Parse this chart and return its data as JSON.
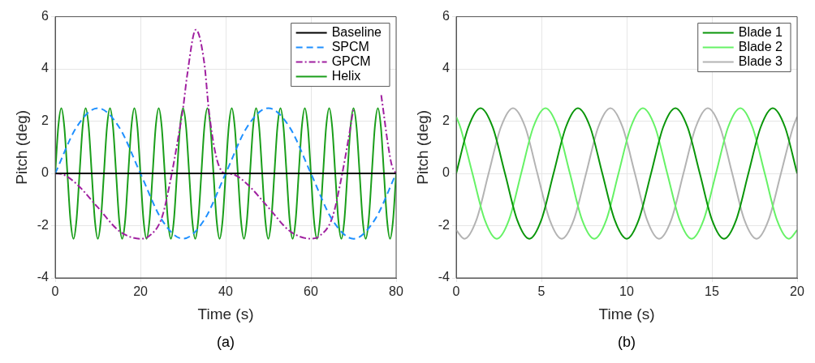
{
  "chart_data": [
    {
      "type": "line",
      "xlabel": "Time (s)",
      "ylabel": "Pitch (deg)",
      "annotations": [
        "(a)"
      ],
      "xlim": [
        0,
        80
      ],
      "ylim": [
        -4,
        6
      ],
      "xticks": [
        0,
        20,
        40,
        60,
        80
      ],
      "yticks": [
        -4,
        -2,
        0,
        2,
        4,
        6
      ],
      "grid": true,
      "legend": "top right",
      "series": [
        {
          "name": "Baseline",
          "color": "#000000",
          "line_style": "solid",
          "x": [
            0,
            80
          ],
          "values": [
            0,
            0
          ]
        },
        {
          "name": "SPCM",
          "color": "#1e90ff",
          "line_style": "dashed",
          "x": [
            0,
            5,
            10,
            15,
            20,
            25,
            30,
            35,
            40,
            45,
            50,
            55,
            60,
            65,
            70,
            75,
            80
          ],
          "values": [
            0,
            1.77,
            2.5,
            1.77,
            0,
            -1.77,
            -2.5,
            -1.77,
            0,
            1.77,
            2.5,
            1.77,
            0,
            -1.77,
            -2.5,
            -1.77,
            0
          ]
        },
        {
          "name": "GPCM",
          "color": "#a020a0",
          "line_style": "dashdot",
          "x": [
            0,
            2,
            5,
            10,
            15,
            20,
            22,
            25,
            27,
            29,
            30,
            31,
            33,
            35,
            36,
            37,
            38,
            39,
            40,
            42,
            45,
            50,
            55,
            60,
            62,
            65,
            67,
            69,
            70,
            73,
            76.5,
            77,
            78,
            79,
            80
          ],
          "values": [
            0,
            -0.05,
            -0.4,
            -1.3,
            -2.2,
            -2.5,
            -2.4,
            -1.7,
            -0.3,
            1.5,
            2.5,
            3.8,
            5.5,
            4.2,
            2.5,
            1.3,
            0.5,
            0.1,
            0,
            -0.05,
            -0.4,
            -1.3,
            -2.2,
            -2.5,
            -2.4,
            -1.7,
            -0.3,
            1.5,
            2.5,
            null,
            3,
            2.4,
            1.2,
            0.3,
            0
          ]
        },
        {
          "name": "Helix",
          "color": "#1a9e1a",
          "line_style": "solid",
          "x": [
            0,
            0.71,
            1.43,
            2.14,
            2.86,
            3.57,
            4.29,
            5,
            5.71,
            6.43,
            7.14,
            7.86,
            8.57,
            9.29,
            10,
            10.71,
            11.43,
            12.14,
            12.86,
            13.57,
            14.29,
            15,
            15.71,
            16.43,
            17.14,
            17.86,
            18.57,
            19.29,
            20,
            20.71,
            21.43,
            22.14,
            22.86,
            23.57,
            24.29,
            25,
            25.71,
            26.43,
            27.14,
            27.86,
            28.57,
            29.29,
            30,
            30.71,
            31.43,
            32.14,
            32.86,
            33.57,
            34.29,
            35,
            35.71,
            36.43,
            37.14,
            37.86,
            38.57,
            39.29,
            40,
            40.71,
            41.43,
            42.14,
            42.86,
            43.57,
            44.29,
            45,
            45.71,
            46.43,
            47.14,
            47.86,
            48.57,
            49.29,
            50,
            50.71,
            51.43,
            52.14,
            52.86,
            53.57,
            54.29,
            55,
            55.71,
            56.43,
            57.14,
            57.86,
            58.57,
            59.29,
            60,
            60.71,
            61.43,
            62.14,
            62.86,
            63.57,
            64.29,
            65,
            65.71,
            66.43,
            67.14,
            67.86,
            68.57,
            69.29,
            70,
            70.71,
            71.43,
            72.14,
            72.86,
            73.57,
            74.29,
            75,
            75.71,
            76.43,
            77.14,
            77.86,
            78.57,
            79.29,
            80
          ],
          "values": [
            0,
            1.77,
            2.5,
            1.77,
            0,
            -1.77,
            -2.5,
            -1.77,
            0,
            1.77,
            2.5,
            1.77,
            0,
            -1.77,
            -2.5,
            -1.77,
            0,
            1.77,
            2.5,
            1.77,
            0,
            -1.77,
            -2.5,
            -1.77,
            0,
            1.77,
            2.5,
            1.77,
            0,
            -1.77,
            -2.5,
            -1.77,
            0,
            1.77,
            2.5,
            1.77,
            0,
            -1.77,
            -2.5,
            -1.77,
            0,
            1.77,
            2.5,
            1.77,
            0,
            -1.77,
            -2.5,
            -1.77,
            0,
            1.77,
            2.5,
            1.77,
            0,
            -1.77,
            -2.5,
            -1.77,
            0,
            1.77,
            2.5,
            1.77,
            0,
            -1.77,
            -2.5,
            -1.77,
            0,
            1.77,
            2.5,
            1.77,
            0,
            -1.77,
            -2.5,
            -1.77,
            0,
            1.77,
            2.5,
            1.77,
            0,
            -1.77,
            -2.5,
            -1.77,
            0,
            1.77,
            2.5,
            1.77,
            0,
            -1.77,
            -2.5,
            -1.77,
            0,
            1.77,
            2.5,
            1.77,
            0,
            -1.77,
            -2.5,
            -1.77,
            0,
            1.77,
            2.5,
            1.77,
            0,
            -1.77,
            -2.5,
            -1.77,
            0,
            1.77,
            2.5,
            1.77,
            0,
            -1.77,
            -2.5,
            -1.77,
            0
          ]
        }
      ]
    },
    {
      "type": "line",
      "xlabel": "Time (s)",
      "ylabel": "Pitch (deg)",
      "annotations": [
        "(b)"
      ],
      "xlim": [
        0,
        20
      ],
      "ylim": [
        -4,
        6
      ],
      "xticks": [
        0,
        5,
        10,
        15,
        20
      ],
      "yticks": [
        -4,
        -2,
        0,
        2,
        4,
        6
      ],
      "grid": true,
      "legend": "top right",
      "x": [
        0,
        0.71,
        1.43,
        2.14,
        2.86,
        3.57,
        4.29,
        5,
        5.71,
        6.43,
        7.14,
        7.86,
        8.57,
        9.29,
        10,
        10.71,
        11.43,
        12.14,
        12.86,
        13.57,
        14.29,
        15,
        15.71,
        16.43,
        17.14,
        17.86,
        18.57,
        19.29,
        20
      ],
      "series": [
        {
          "name": "Blade 1",
          "color": "#0a960a",
          "line_style": "solid",
          "values": [
            0,
            1.77,
            2.5,
            1.77,
            0,
            -1.77,
            -2.5,
            -1.77,
            0,
            1.77,
            2.5,
            1.77,
            0,
            -1.77,
            -2.5,
            -1.77,
            0,
            1.77,
            2.5,
            1.77,
            0,
            -1.77,
            -2.5,
            -1.77,
            0,
            1.77,
            2.5,
            1.77,
            0
          ]
        },
        {
          "name": "Blade 2",
          "color": "#66f266",
          "line_style": "solid",
          "x": [
            0,
            0.24,
            0.95,
            1.67,
            2.38,
            3.1,
            3.81,
            4.52,
            5.24,
            5.95,
            6.67,
            7.38,
            8.1,
            8.81,
            9.52,
            10.24,
            10.95,
            11.67,
            12.38,
            13.1,
            13.81,
            14.52,
            15.24,
            15.95,
            16.67,
            17.38,
            18.1,
            18.81,
            19.52,
            20
          ],
          "values": [
            2.17,
            1.77,
            0,
            -1.77,
            -2.5,
            -1.77,
            0,
            1.77,
            2.5,
            1.77,
            0,
            -1.77,
            -2.5,
            -1.77,
            0,
            1.77,
            2.5,
            1.77,
            0,
            -1.77,
            -2.5,
            -1.77,
            0,
            1.77,
            2.5,
            1.77,
            0,
            -1.77,
            -2.5,
            -2.17
          ]
        },
        {
          "name": "Blade 3",
          "color": "#b3b3b3",
          "line_style": "solid",
          "x": [
            0,
            0.48,
            1.19,
            1.9,
            2.62,
            3.33,
            4.05,
            4.76,
            5.48,
            6.19,
            6.9,
            7.62,
            8.33,
            9.05,
            9.76,
            10.48,
            11.19,
            11.9,
            12.62,
            13.33,
            14.05,
            14.76,
            15.48,
            16.19,
            16.9,
            17.62,
            18.33,
            19.05,
            19.76,
            20
          ],
          "values": [
            -2.17,
            -2.5,
            -1.77,
            0,
            1.77,
            2.5,
            1.77,
            0,
            -1.77,
            -2.5,
            -1.77,
            0,
            1.77,
            2.5,
            1.77,
            0,
            -1.77,
            -2.5,
            -1.77,
            0,
            1.77,
            2.5,
            1.77,
            0,
            -1.77,
            -2.5,
            -1.77,
            0,
            1.77,
            2.17
          ]
        }
      ]
    }
  ]
}
